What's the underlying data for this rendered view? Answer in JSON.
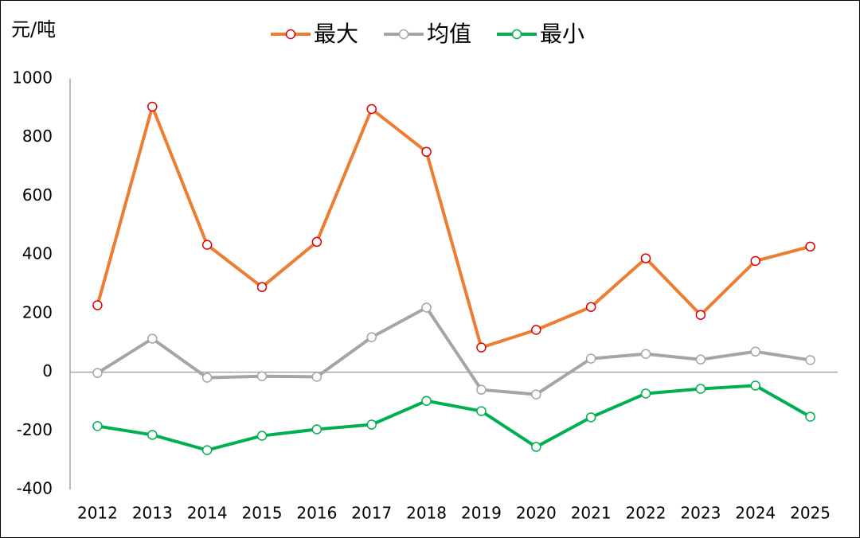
{
  "chart_data": {
    "type": "line",
    "y_label": "元/吨",
    "categories": [
      "2012",
      "2013",
      "2014",
      "2015",
      "2016",
      "2017",
      "2018",
      "2019",
      "2020",
      "2021",
      "2022",
      "2023",
      "2024",
      "2025"
    ],
    "series": [
      {
        "name": "最大",
        "color": "#ed7d31",
        "marker_color": "#e00000",
        "values": [
          228,
          905,
          434,
          290,
          444,
          897,
          751,
          84,
          144,
          222,
          388,
          195,
          379,
          428
        ]
      },
      {
        "name": "均值",
        "color": "#a5a5a5",
        "marker_color": "#a5a5a5",
        "values": [
          -3,
          114,
          -19,
          -14,
          -16,
          119,
          220,
          -60,
          -76,
          46,
          62,
          43,
          70,
          41
        ]
      },
      {
        "name": "最小",
        "color": "#00b050",
        "marker_color": "#00b050",
        "values": [
          -184,
          -214,
          -266,
          -217,
          -195,
          -179,
          -98,
          -133,
          -255,
          -154,
          -73,
          -57,
          -46,
          -152
        ]
      }
    ],
    "ylim": [
      -400,
      1000
    ],
    "yticks": [
      -400,
      -200,
      0,
      200,
      400,
      600,
      800,
      1000
    ],
    "legend": "top"
  }
}
